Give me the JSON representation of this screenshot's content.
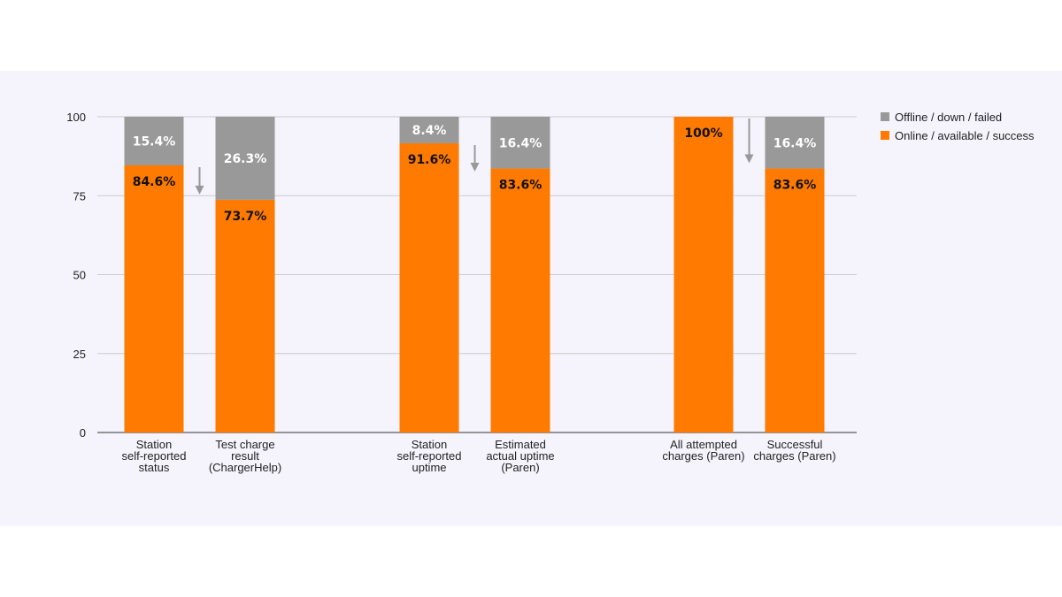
{
  "chart_data": {
    "type": "bar",
    "stacked": true,
    "categories": [
      [
        "Station",
        "self-reported",
        "status"
      ],
      [
        "Test charge",
        "result",
        "(ChargerHelp)"
      ],
      [
        "Station",
        "self-reported",
        "uptime"
      ],
      [
        "Estimated",
        "actual uptime",
        "(Paren)"
      ],
      [
        "All attempted",
        "charges (Paren)"
      ],
      [
        "Successful",
        "charges (Paren)"
      ]
    ],
    "series": [
      {
        "name": "Online / available / success",
        "color": "#ff7a00",
        "label_color": "#111111",
        "values": [
          84.6,
          73.7,
          91.6,
          83.6,
          100,
          83.6
        ],
        "labels": [
          "84.6%",
          "73.7%",
          "91.6%",
          "83.6%",
          "100%",
          "83.6%"
        ]
      },
      {
        "name": "Offline / down / failed",
        "color": "#999999",
        "label_color": "#ffffff",
        "values": [
          15.4,
          26.3,
          8.4,
          16.4,
          0,
          16.4
        ],
        "labels": [
          "15.4%",
          "26.3%",
          "8.4%",
          "16.4%",
          "",
          "16.4%"
        ]
      }
    ],
    "yticks": [
      0,
      25,
      50,
      75,
      100
    ],
    "ylim": [
      0,
      100
    ],
    "grid": true,
    "legend_position": "top-right",
    "legend_order": [
      "Offline / down / failed",
      "Online / available / success"
    ],
    "arrow_color": "#999999"
  }
}
